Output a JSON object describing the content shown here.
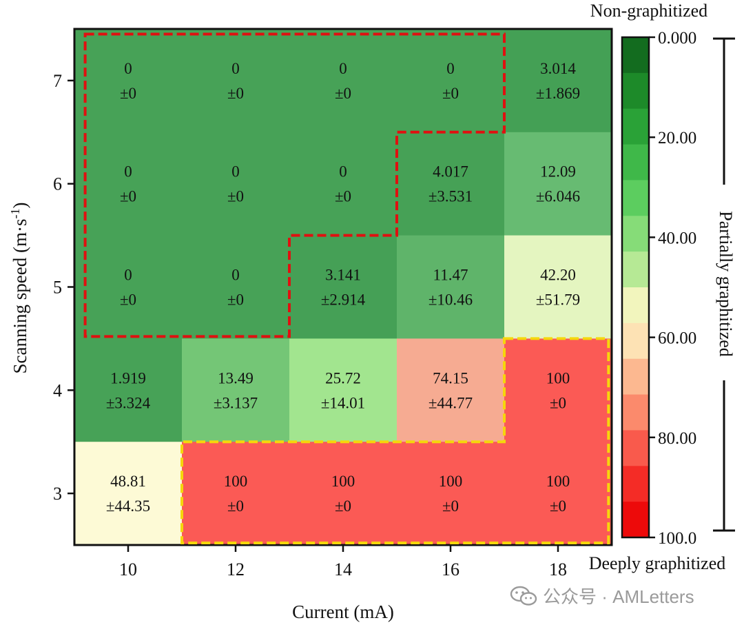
{
  "chart_data": {
    "type": "heatmap",
    "xlabel": "Current (mA)",
    "ylabel": "Scanning speed (m·s",
    "ylabel_sup": "-1",
    "ylabel_close": ")",
    "x_ticks": [
      "10",
      "12",
      "14",
      "16",
      "18"
    ],
    "y_ticks": [
      "7",
      "6",
      "5",
      "4",
      "3"
    ],
    "cells": [
      [
        {
          "v": "0",
          "e": "±0"
        },
        {
          "v": "0",
          "e": "±0"
        },
        {
          "v": "0",
          "e": "±0"
        },
        {
          "v": "0",
          "e": "±0"
        },
        {
          "v": "3.014",
          "e": "±1.869"
        }
      ],
      [
        {
          "v": "0",
          "e": "±0"
        },
        {
          "v": "0",
          "e": "±0"
        },
        {
          "v": "0",
          "e": "±0"
        },
        {
          "v": "4.017",
          "e": "±3.531"
        },
        {
          "v": "12.09",
          "e": "±6.046"
        }
      ],
      [
        {
          "v": "0",
          "e": "±0"
        },
        {
          "v": "0",
          "e": "±0"
        },
        {
          "v": "3.141",
          "e": "±2.914"
        },
        {
          "v": "11.47",
          "e": "±10.46"
        },
        {
          "v": "42.20",
          "e": "±51.79"
        }
      ],
      [
        {
          "v": "1.919",
          "e": "±3.324"
        },
        {
          "v": "13.49",
          "e": "±3.137"
        },
        {
          "v": "25.72",
          "e": "±14.01"
        },
        {
          "v": "74.15",
          "e": "±44.77"
        },
        {
          "v": "100",
          "e": "±0"
        }
      ],
      [
        {
          "v": "48.81",
          "e": "±44.35"
        },
        {
          "v": "100",
          "e": "±0"
        },
        {
          "v": "100",
          "e": "±0"
        },
        {
          "v": "100",
          "e": "±0"
        },
        {
          "v": "100",
          "e": "±0"
        }
      ]
    ],
    "cell_colors": [
      [
        "#47a257",
        "#47a257",
        "#47a257",
        "#47a257",
        "#44a055"
      ],
      [
        "#47a257",
        "#47a257",
        "#47a257",
        "#46a156",
        "#67bb72"
      ],
      [
        "#47a257",
        "#47a257",
        "#45a056",
        "#5fb46a",
        "#e4f5c0"
      ],
      [
        "#47a257",
        "#74c676",
        "#a2e58f",
        "#f6ab92",
        "#fb5a55"
      ],
      [
        "#fdfad6",
        "#fb5a55",
        "#fb5a55",
        "#fb5a55",
        "#fb5a55"
      ]
    ],
    "colorbar": {
      "range": [
        0,
        100
      ],
      "ticks": [
        "0.000",
        "20.00",
        "40.00",
        "60.00",
        "80.00",
        "100.0"
      ],
      "colors": [
        "#136c1f",
        "#1d8a29",
        "#2aa237",
        "#3fb849",
        "#5ccd5f",
        "#86dc78",
        "#b6e995",
        "#f2f5bd",
        "#fde2b4",
        "#fcb890",
        "#fb8a6c",
        "#f95a4c",
        "#f42c26",
        "#ed0a0a"
      ],
      "top_label": "Non-graphitized",
      "middle_label": "Partially graphitized",
      "bottom_label": "Deeply graphitized"
    },
    "regions": [
      {
        "name": "non-graphitized-region",
        "color": "#e01010"
      },
      {
        "name": "deeply-graphitized-region",
        "color": "#f5d60c"
      }
    ]
  },
  "watermark": {
    "text": "公众号 · AMLetters"
  }
}
